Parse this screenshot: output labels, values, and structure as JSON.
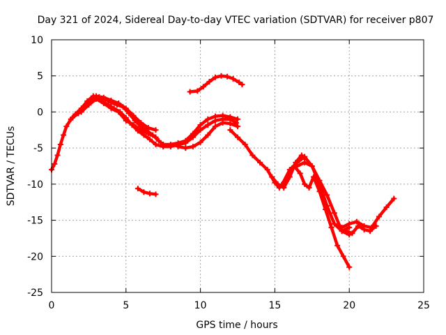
{
  "chart_data": {
    "type": "scatter",
    "title": "Day 321 of 2024, Sidereal Day-to-day VTEC variation (SDTVAR) for receiver p807",
    "xlabel": "GPS time / hours",
    "ylabel": "SDTVAR / TECUs",
    "xlim": [
      0,
      25
    ],
    "ylim": [
      -25,
      10
    ],
    "xticks": [
      0,
      5,
      10,
      15,
      20,
      25
    ],
    "yticks": [
      -25,
      -20,
      -15,
      -10,
      -5,
      0,
      5,
      10
    ],
    "xtick_labels": [
      "0",
      "5",
      "10",
      "15",
      "20",
      "25"
    ],
    "ytick_labels": [
      "-25",
      "-20",
      "-15",
      "-10",
      "-5",
      "0",
      "5",
      "10"
    ],
    "grid": true,
    "legend": "none",
    "marker": "plus",
    "color": "#ff0000",
    "series": [
      {
        "name": "arc-1",
        "x": [
          0.0,
          0.2,
          0.4,
          0.6,
          0.8,
          1.0,
          1.3,
          1.6,
          2.0,
          2.4,
          2.8,
          3.2,
          3.6,
          4.0,
          4.4,
          4.8,
          5.2,
          5.6,
          6.0,
          6.4,
          6.8,
          7.2,
          7.5
        ],
        "y": [
          -8.0,
          -7.2,
          -6.0,
          -4.5,
          -3.2,
          -2.0,
          -1.0,
          -0.3,
          0.5,
          1.5,
          2.2,
          2.1,
          1.8,
          1.3,
          1.0,
          0.7,
          -0.2,
          -1.2,
          -2.0,
          -2.6,
          -3.2,
          -4.0,
          -4.5
        ]
      },
      {
        "name": "arc-2",
        "x": [
          1.4,
          1.8,
          2.2,
          2.6,
          3.0,
          3.4,
          3.8,
          4.2,
          4.6,
          5.0,
          5.4,
          5.8,
          6.2,
          6.6,
          7.0
        ],
        "y": [
          -0.8,
          -0.2,
          0.8,
          1.6,
          1.8,
          1.5,
          1.0,
          0.5,
          0.0,
          -0.8,
          -1.8,
          -2.6,
          -3.2,
          -3.8,
          -4.5
        ]
      },
      {
        "name": "arc-3",
        "x": [
          2.0,
          2.5,
          3.0,
          3.5,
          4.0,
          4.5,
          5.0,
          5.5,
          6.0,
          6.5,
          7.0
        ],
        "y": [
          0.0,
          1.0,
          1.8,
          1.2,
          0.5,
          0.0,
          -1.2,
          -1.8,
          -2.5,
          -3.0,
          -3.5
        ]
      },
      {
        "name": "arc-4",
        "x": [
          2.5,
          3.0,
          3.5,
          4.0,
          4.5,
          5.0,
          5.5,
          6.0,
          6.5,
          7.0
        ],
        "y": [
          1.0,
          2.2,
          2.0,
          1.6,
          1.2,
          0.5,
          -0.5,
          -1.5,
          -2.2,
          -2.5
        ]
      },
      {
        "name": "arc-5",
        "x": [
          7.0,
          7.5,
          8.0,
          8.5,
          9.0,
          9.5,
          10.0,
          10.5,
          11.0,
          11.5,
          12.0,
          12.4
        ],
        "y": [
          -4.5,
          -4.8,
          -4.8,
          -4.5,
          -4.3,
          -3.5,
          -2.5,
          -1.8,
          -1.2,
          -1.0,
          -1.0,
          -1.5
        ]
      },
      {
        "name": "arc-6",
        "x": [
          7.5,
          8.0,
          8.5,
          9.0,
          9.5,
          10.0,
          10.5,
          11.0,
          11.5,
          12.0,
          12.5
        ],
        "y": [
          -4.5,
          -4.5,
          -4.3,
          -4.0,
          -3.0,
          -1.8,
          -1.0,
          -0.6,
          -0.5,
          -0.7,
          -1.0
        ]
      },
      {
        "name": "arc-7",
        "x": [
          8.5,
          9.0,
          9.5,
          10.0,
          10.5,
          11.0,
          11.5,
          12.0,
          12.5
        ],
        "y": [
          -4.8,
          -5.0,
          -4.8,
          -4.2,
          -3.2,
          -2.0,
          -1.5,
          -1.6,
          -2.0
        ]
      },
      {
        "name": "arc-8",
        "x": [
          9.3,
          9.8,
          10.2,
          10.6,
          11.0,
          11.4,
          11.8,
          12.2,
          12.6,
          12.8
        ],
        "y": [
          2.8,
          2.9,
          3.5,
          4.2,
          4.8,
          5.0,
          4.9,
          4.6,
          4.1,
          3.8
        ]
      },
      {
        "name": "arc-9",
        "x": [
          5.8,
          6.2,
          6.6,
          7.0
        ],
        "y": [
          -10.6,
          -11.1,
          -11.3,
          -11.4
        ]
      },
      {
        "name": "arc-10",
        "x": [
          12.0,
          12.5,
          13.0,
          13.5,
          14.0,
          14.5,
          15.0,
          15.3,
          15.6,
          16.0,
          16.3,
          16.7,
          17.0,
          17.3,
          17.6,
          18.0,
          18.4,
          18.8,
          19.2,
          19.6,
          20.0
        ],
        "y": [
          -2.5,
          -3.5,
          -4.5,
          -6.0,
          -7.0,
          -8.0,
          -9.8,
          -10.5,
          -9.8,
          -8.5,
          -7.5,
          -8.5,
          -10.0,
          -10.5,
          -9.0,
          -11.0,
          -13.5,
          -16.0,
          -18.5,
          -20.0,
          -21.5
        ]
      },
      {
        "name": "arc-11",
        "x": [
          14.8,
          15.2,
          15.6,
          16.0,
          16.4,
          16.8,
          17.0
        ],
        "y": [
          -9.0,
          -10.0,
          -10.5,
          -9.0,
          -7.0,
          -6.0,
          -6.5
        ]
      },
      {
        "name": "arc-12",
        "x": [
          16.5,
          17.0,
          17.5,
          18.0,
          18.5,
          19.0,
          19.5,
          20.0
        ],
        "y": [
          -7.5,
          -7.0,
          -7.5,
          -9.5,
          -11.5,
          -14.0,
          -16.5,
          -17.0
        ]
      },
      {
        "name": "arc-13",
        "x": [
          15.5,
          16.0,
          16.5,
          17.0,
          17.5,
          18.0,
          18.5,
          19.0,
          19.5,
          20.0
        ],
        "y": [
          -10.0,
          -8.0,
          -7.0,
          -6.2,
          -7.5,
          -10.0,
          -13.0,
          -15.5,
          -16.5,
          -16.0
        ]
      },
      {
        "name": "arc-14",
        "x": [
          19.5,
          20.0,
          20.5,
          21.0,
          21.5,
          22.0,
          22.5,
          23.0
        ],
        "y": [
          -16.0,
          -15.5,
          -15.2,
          -15.8,
          -16.0,
          -14.5,
          -13.2,
          -12.0
        ]
      },
      {
        "name": "arc-15",
        "x": [
          19.8,
          20.2,
          20.6,
          21.0,
          21.4,
          21.8
        ],
        "y": [
          -16.5,
          -16.8,
          -15.8,
          -16.3,
          -16.5,
          -15.8
        ]
      }
    ]
  }
}
